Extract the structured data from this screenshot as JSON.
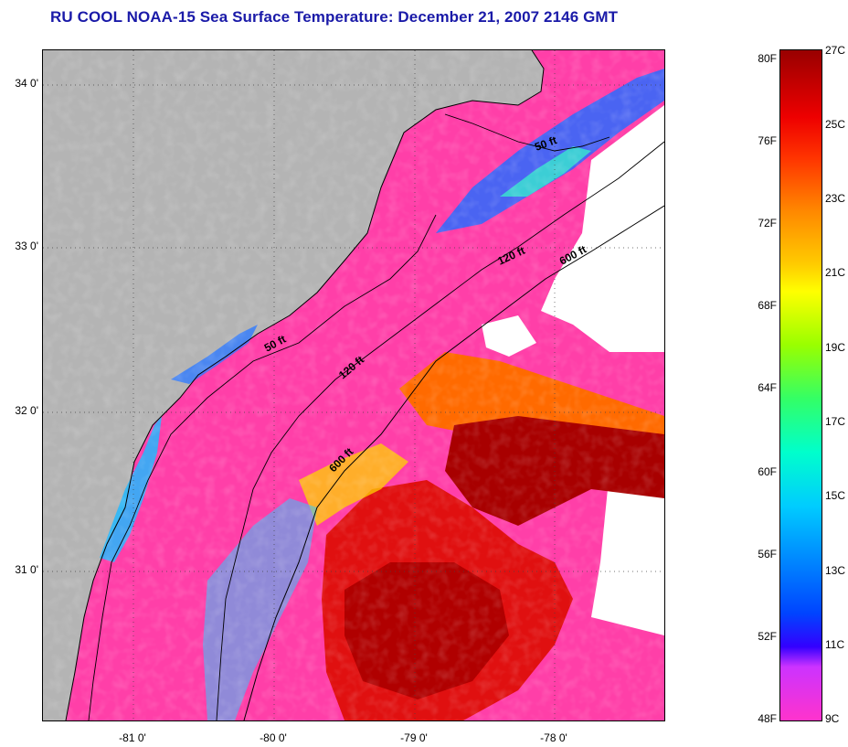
{
  "title": "RU COOL  NOAA-15  Sea Surface Temperature:  December 21, 2007 2146 GMT",
  "lat_labels": [
    "34 0'",
    "33 0'",
    "32 0'",
    "31 0'"
  ],
  "lon_labels": [
    "-81 0'",
    "-80 0'",
    "-79 0'",
    "-78 0'"
  ],
  "isobaths": [
    {
      "label": "50 ft",
      "instance": "north"
    },
    {
      "label": "120 ft",
      "instance": "north"
    },
    {
      "label": "600 ft",
      "instance": "north"
    },
    {
      "label": "50 ft",
      "instance": "south"
    },
    {
      "label": "120 ft",
      "instance": "south"
    },
    {
      "label": "600 ft",
      "instance": "south"
    }
  ],
  "colorbar": {
    "fahrenheit": [
      "80F",
      "76F",
      "72F",
      "68F",
      "64F",
      "60F",
      "56F",
      "52F",
      "48F"
    ],
    "celsius": [
      "27C",
      "25C",
      "23C",
      "21C",
      "19C",
      "17C",
      "15C",
      "13C",
      "11C",
      "9C"
    ]
  },
  "colors": {
    "land": "#b4b4b4",
    "cold_water": "#ff3fa8",
    "warm_water": "#e01010",
    "gulf_core": "#a80000",
    "title": "#1a1aa8"
  }
}
